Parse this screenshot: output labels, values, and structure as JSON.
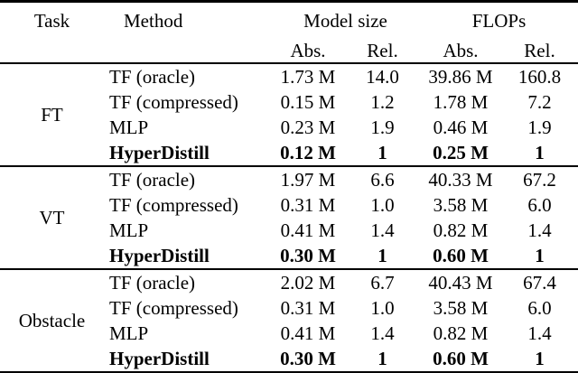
{
  "table": {
    "headers": {
      "task": "Task",
      "method": "Method",
      "model_size": "Model size",
      "flops": "FLOPs",
      "abs": "Abs.",
      "rel": "Rel."
    },
    "groups": [
      {
        "task": "FT",
        "rows": [
          {
            "method": "TF (oracle)",
            "ms_abs": "1.73 M",
            "ms_rel": "14.0",
            "fl_abs": "39.86 M",
            "fl_rel": "160.8",
            "emphasis": false
          },
          {
            "method": "TF (compressed)",
            "ms_abs": "0.15 M",
            "ms_rel": "1.2",
            "fl_abs": "1.78 M",
            "fl_rel": "7.2",
            "emphasis": false
          },
          {
            "method": "MLP",
            "ms_abs": "0.23 M",
            "ms_rel": "1.9",
            "fl_abs": "0.46 M",
            "fl_rel": "1.9",
            "emphasis": false
          },
          {
            "method": "HyperDistill",
            "ms_abs": "0.12 M",
            "ms_rel": "1",
            "fl_abs": "0.25 M",
            "fl_rel": "1",
            "emphasis": true
          }
        ]
      },
      {
        "task": "VT",
        "rows": [
          {
            "method": "TF (oracle)",
            "ms_abs": "1.97 M",
            "ms_rel": "6.6",
            "fl_abs": "40.33 M",
            "fl_rel": "67.2",
            "emphasis": false
          },
          {
            "method": "TF (compressed)",
            "ms_abs": "0.31 M",
            "ms_rel": "1.0",
            "fl_abs": "3.58 M",
            "fl_rel": "6.0",
            "emphasis": false
          },
          {
            "method": "MLP",
            "ms_abs": "0.41 M",
            "ms_rel": "1.4",
            "fl_abs": "0.82 M",
            "fl_rel": "1.4",
            "emphasis": false
          },
          {
            "method": "HyperDistill",
            "ms_abs": "0.30 M",
            "ms_rel": "1",
            "fl_abs": "0.60 M",
            "fl_rel": "1",
            "emphasis": true
          }
        ]
      },
      {
        "task": "Obstacle",
        "rows": [
          {
            "method": "TF (oracle)",
            "ms_abs": "2.02 M",
            "ms_rel": "6.7",
            "fl_abs": "40.43 M",
            "fl_rel": "67.4",
            "emphasis": false
          },
          {
            "method": "TF (compressed)",
            "ms_abs": "0.31 M",
            "ms_rel": "1.0",
            "fl_abs": "3.58 M",
            "fl_rel": "6.0",
            "emphasis": false
          },
          {
            "method": "MLP",
            "ms_abs": "0.41 M",
            "ms_rel": "1.4",
            "fl_abs": "0.82 M",
            "fl_rel": "1.4",
            "emphasis": false
          },
          {
            "method": "HyperDistill",
            "ms_abs": "0.30 M",
            "ms_rel": "1",
            "fl_abs": "0.60 M",
            "fl_rel": "1",
            "emphasis": true
          }
        ]
      }
    ]
  }
}
